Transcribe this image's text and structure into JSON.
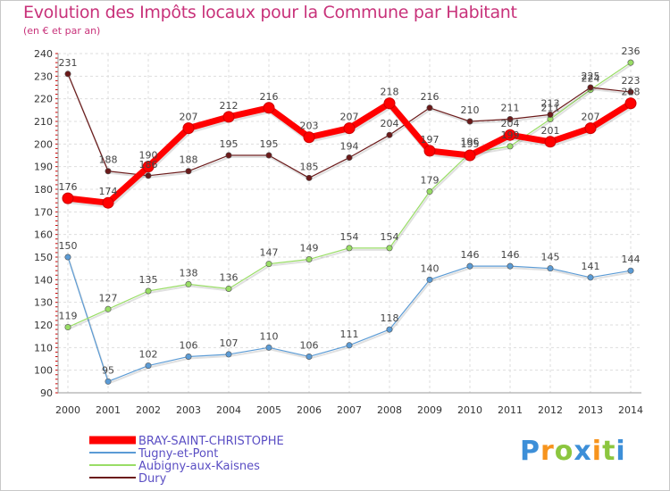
{
  "chart_data": {
    "type": "line",
    "title": "Evolution des Impôts locaux pour la Commune par Habitant",
    "subtitle": "(en € et par an)",
    "xlabel": "",
    "ylabel": "",
    "ylim": [
      90,
      240
    ],
    "y_ticks": [
      "90",
      "100",
      "110",
      "120",
      "130",
      "140",
      "150",
      "160",
      "170",
      "180",
      "190",
      "200",
      "210",
      "220",
      "230",
      "240"
    ],
    "x": [
      "2000",
      "2001",
      "2002",
      "2003",
      "2004",
      "2005",
      "2006",
      "2007",
      "2008",
      "2009",
      "2010",
      "2011",
      "2012",
      "2013",
      "2014"
    ],
    "grid": true,
    "legend_position": "bottom-left",
    "series": [
      {
        "name": "BRAY-SAINT-CHRISTOPHE",
        "color": "#ff0000",
        "values": [
          176,
          174,
          190,
          207,
          212,
          216,
          203,
          207,
          218,
          197,
          195,
          204,
          201,
          207,
          218
        ]
      },
      {
        "name": "Tugny-et-Pont",
        "color": "#5b9bd5",
        "values": [
          150,
          95,
          102,
          106,
          107,
          110,
          106,
          111,
          118,
          140,
          146,
          146,
          145,
          141,
          144
        ]
      },
      {
        "name": "Aubigny-aux-Kaisnes",
        "color": "#99dd66",
        "values": [
          119,
          127,
          135,
          138,
          136,
          147,
          149,
          154,
          154,
          179,
          196,
          199,
          211,
          224,
          236
        ]
      },
      {
        "name": "Dury",
        "color": "#6b1a1a",
        "values": [
          231,
          188,
          186,
          188,
          195,
          195,
          185,
          194,
          204,
          216,
          210,
          211,
          213,
          225,
          223
        ]
      }
    ],
    "point_labels": [
      [
        "176",
        "174",
        "190",
        "207",
        "212",
        "216",
        "203",
        "207",
        "218",
        "197",
        "195",
        "204",
        "201",
        "207",
        "218"
      ],
      [
        "150",
        "95",
        "102",
        "106",
        "107",
        "110",
        "106",
        "111",
        "118",
        "140",
        "146",
        "146",
        "145",
        "141",
        "144"
      ],
      [
        "119",
        "127",
        "135",
        "138",
        "136",
        "147",
        "149",
        "154",
        "154",
        "179",
        "196",
        "199",
        "211",
        "224",
        "236"
      ],
      [
        "231",
        "188",
        "186",
        "188",
        "195",
        "195",
        "185",
        "194",
        "204",
        "216",
        "210",
        "211",
        "213",
        "225",
        "223"
      ]
    ]
  },
  "brand": {
    "letters": [
      "P",
      "r",
      "o",
      "x",
      "i",
      "t",
      "i"
    ],
    "colors": [
      "#3d8fd8",
      "#f7941d",
      "#8cc63f",
      "#3d8fd8",
      "#f7941d",
      "#8cc63f",
      "#3d8fd8"
    ]
  }
}
